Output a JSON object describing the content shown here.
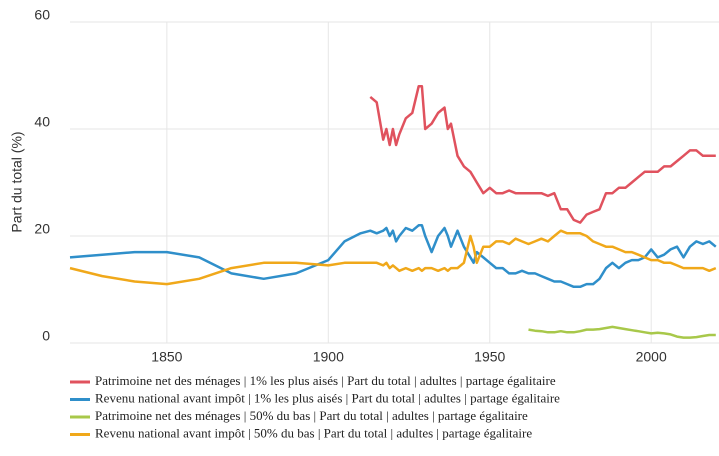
{
  "chart_data": {
    "type": "line",
    "ylabel": "Part du total (%)",
    "x": [
      1820,
      1830,
      1840,
      1850,
      1860,
      1870,
      1880,
      1890,
      1900,
      1905,
      1910,
      1913,
      1915,
      1917,
      1918,
      1919,
      1920,
      1921,
      1922,
      1924,
      1926,
      1928,
      1929,
      1930,
      1932,
      1934,
      1936,
      1937,
      1938,
      1940,
      1942,
      1944,
      1945,
      1946,
      1948,
      1950,
      1952,
      1954,
      1956,
      1958,
      1960,
      1962,
      1964,
      1966,
      1968,
      1970,
      1972,
      1974,
      1976,
      1978,
      1980,
      1982,
      1984,
      1986,
      1988,
      1990,
      1992,
      1994,
      1996,
      1998,
      2000,
      2002,
      2004,
      2006,
      2008,
      2010,
      2012,
      2014,
      2016,
      2018,
      2020
    ],
    "series": [
      {
        "name": "Patrimoine net des ménages | 1% les plus aisés | Part du total | adultes | partage égalitaire",
        "color": "#e0525e",
        "values": [
          null,
          null,
          null,
          null,
          null,
          null,
          null,
          null,
          null,
          null,
          null,
          46,
          45,
          38,
          40,
          37,
          40,
          37,
          39,
          42,
          43,
          48,
          48,
          40,
          41,
          43,
          44,
          40,
          41,
          35,
          33,
          32,
          31,
          30,
          28,
          29,
          28,
          28,
          28.5,
          28,
          28,
          28,
          28,
          28,
          27.5,
          28,
          25,
          25,
          23,
          22.5,
          24,
          24.5,
          25,
          28,
          28,
          29,
          29,
          30,
          31,
          32,
          32,
          32,
          33,
          33,
          34,
          35,
          36,
          36,
          35,
          35,
          35
        ]
      },
      {
        "name": "Revenu national avant impôt | 1% les plus aisés | Part du total | adultes | partage égalitaire",
        "color": "#2f8fca",
        "values": [
          16,
          16.5,
          17,
          17,
          16,
          13,
          12,
          13,
          15.5,
          19,
          20.5,
          21,
          20.5,
          21,
          21.5,
          20,
          21,
          19,
          20,
          21.5,
          21,
          22,
          22,
          20,
          17,
          20,
          21.5,
          20,
          18,
          21,
          18,
          16,
          15,
          17,
          16,
          15,
          14,
          14,
          13,
          13,
          13.5,
          13,
          13,
          12.5,
          12,
          11.5,
          11.5,
          11,
          10.5,
          10.5,
          11,
          11,
          12,
          14,
          15,
          14,
          15,
          15.5,
          15.5,
          16,
          17.5,
          16,
          16.5,
          17.5,
          18,
          16,
          18,
          19,
          18.5,
          19,
          18
        ]
      },
      {
        "name": "Patrimoine net des ménages | 50% du bas | Part du total | adultes | partage égalitaire",
        "color": "#a8c84a",
        "values": [
          null,
          null,
          null,
          null,
          null,
          null,
          null,
          null,
          null,
          null,
          null,
          null,
          null,
          null,
          null,
          null,
          null,
          null,
          null,
          null,
          null,
          null,
          null,
          null,
          null,
          null,
          null,
          null,
          null,
          null,
          null,
          null,
          null,
          null,
          null,
          null,
          null,
          null,
          null,
          null,
          null,
          2.5,
          2.3,
          2.2,
          2,
          2,
          2.2,
          2,
          2,
          2.2,
          2.5,
          2.5,
          2.6,
          2.8,
          3,
          2.8,
          2.6,
          2.4,
          2.2,
          2,
          1.8,
          1.9,
          1.8,
          1.6,
          1.2,
          1,
          1,
          1.1,
          1.3,
          1.5,
          1.5
        ]
      },
      {
        "name": "Revenu national avant impôt | 50% du bas | Part du total | adultes | partage égalitaire",
        "color": "#f0a81a",
        "values": [
          14,
          12.5,
          11.5,
          11,
          12,
          14,
          15,
          15,
          14.5,
          15,
          15,
          15,
          15,
          14.5,
          15,
          14,
          14.5,
          14,
          13.5,
          14,
          13.5,
          14,
          13.5,
          14,
          14,
          13.5,
          14,
          13.5,
          14,
          14,
          15,
          20,
          18,
          15,
          18,
          18,
          19,
          19,
          18.5,
          19.5,
          19,
          18.5,
          19,
          19.5,
          19,
          20,
          21,
          20.5,
          20.5,
          20.5,
          20,
          19,
          18.5,
          18,
          18,
          17.5,
          17,
          17,
          16.5,
          16,
          15.5,
          15.5,
          15,
          15,
          14.5,
          14,
          14,
          14,
          14,
          13.5,
          14
        ]
      }
    ],
    "xlim": [
      1820,
      2021
    ],
    "xticks": [
      1850,
      1900,
      1950,
      2000
    ],
    "ylim": [
      0,
      60
    ],
    "yticks": [
      0,
      20,
      40,
      60
    ],
    "grid": true
  }
}
